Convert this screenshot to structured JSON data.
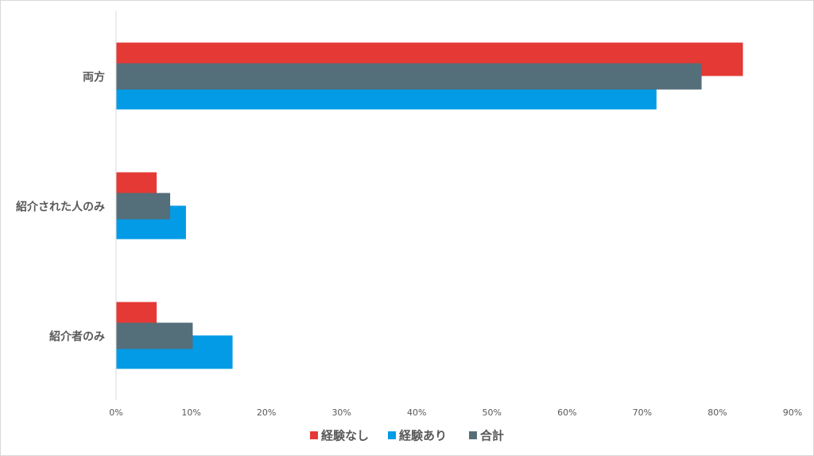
{
  "chart_data": {
    "type": "bar",
    "orientation": "horizontal",
    "categories": [
      "両方",
      "紹介された人のみ",
      "紹介者のみ"
    ],
    "series": [
      {
        "name": "経験なし",
        "color": "#e53935",
        "values": [
          83.4,
          5.4,
          5.4
        ]
      },
      {
        "name": "経験あり",
        "color": "#039be5",
        "values": [
          71.9,
          9.3,
          15.5
        ]
      },
      {
        "name": "合計",
        "color": "#546e7a",
        "values": [
          77.9,
          7.2,
          10.2
        ]
      }
    ],
    "xlim": [
      0,
      90
    ],
    "xticks": [
      {
        "value": 0,
        "label": "0%"
      },
      {
        "value": 10,
        "label": "10%"
      },
      {
        "value": 20,
        "label": "20%"
      },
      {
        "value": 30,
        "label": "30%"
      },
      {
        "value": 40,
        "label": "40%"
      },
      {
        "value": 50,
        "label": "50%"
      },
      {
        "value": 60,
        "label": "60%"
      },
      {
        "value": 70,
        "label": "70%"
      },
      {
        "value": 80,
        "label": "80%"
      },
      {
        "value": 90,
        "label": "90%"
      }
    ],
    "grid": false,
    "legend": "bottom"
  }
}
